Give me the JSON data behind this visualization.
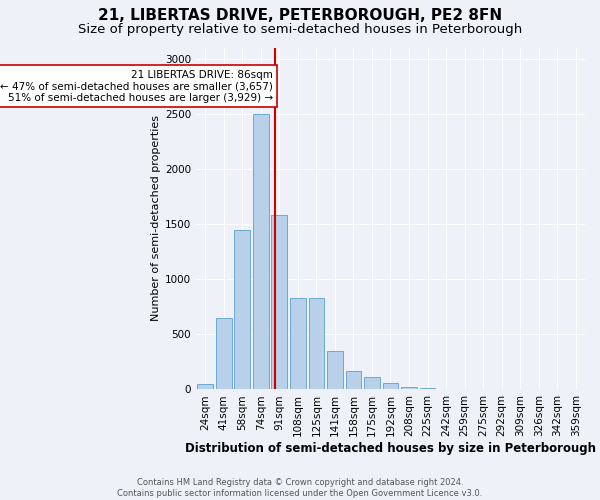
{
  "title": "21, LIBERTAS DRIVE, PETERBOROUGH, PE2 8FN",
  "subtitle": "Size of property relative to semi-detached houses in Peterborough",
  "xlabel": "Distribution of semi-detached houses by size in Peterborough",
  "ylabel": "Number of semi-detached properties",
  "footnote": "Contains HM Land Registry data © Crown copyright and database right 2024.\nContains public sector information licensed under the Open Government Licence v3.0.",
  "categories": [
    "24sqm",
    "41sqm",
    "58sqm",
    "74sqm",
    "91sqm",
    "108sqm",
    "125sqm",
    "141sqm",
    "158sqm",
    "175sqm",
    "192sqm",
    "208sqm",
    "225sqm",
    "242sqm",
    "259sqm",
    "275sqm",
    "292sqm",
    "309sqm",
    "326sqm",
    "342sqm",
    "359sqm"
  ],
  "values": [
    50,
    650,
    1450,
    2500,
    1580,
    830,
    830,
    350,
    170,
    115,
    60,
    18,
    10,
    4,
    4,
    4,
    0,
    3,
    0,
    0,
    0
  ],
  "bar_color": "#b8d0ea",
  "bar_edge_color": "#6aaad4",
  "property_label": "21 LIBERTAS DRIVE: 86sqm",
  "line_color": "#cc0000",
  "annotation_smaller": "← 47% of semi-detached houses are smaller (3,657)",
  "annotation_larger": "51% of semi-detached houses are larger (3,929) →",
  "annotation_box_color": "#ffffff",
  "annotation_box_edge": "#cc0000",
  "ylim": [
    0,
    3100
  ],
  "yticks": [
    0,
    500,
    1000,
    1500,
    2000,
    2500,
    3000
  ],
  "background_color": "#eef2f8",
  "grid_color": "#ffffff",
  "title_fontsize": 11,
  "subtitle_fontsize": 9.5,
  "xlabel_fontsize": 8.5,
  "ylabel_fontsize": 8,
  "tick_fontsize": 7.5,
  "annot_fontsize": 7.5,
  "footnote_fontsize": 6
}
